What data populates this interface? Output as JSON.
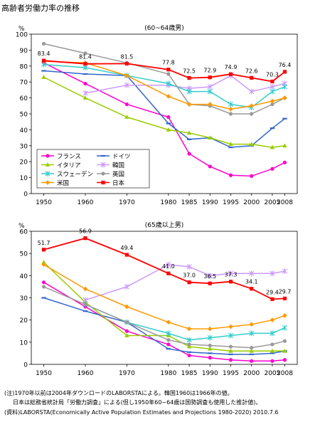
{
  "title": "高齢者労働力率の推移",
  "notes": [
    "(注)1970年以前は2004年ダウンロードのLABORSTAによる。韓国1960は1966年の値。",
    "日本は総務省統計局「労働力調査」による(但し1950年60~64歳は国勢調査も使用した推計値)。",
    "(資料)LABORSTA(Economically Active Population Estimates and Projections 1980-2020) 2010.7.6"
  ],
  "chart_data": [
    {
      "type": "line",
      "title": "(60~64歳男)",
      "ylabel": "%",
      "ylim": [
        0,
        100
      ],
      "yticks": [
        0,
        10,
        20,
        30,
        40,
        50,
        60,
        70,
        80,
        90,
        100
      ],
      "x": [
        1950,
        1960,
        1970,
        1980,
        1985,
        1990,
        1995,
        2000,
        2005,
        2008
      ],
      "legend": "bottom-left",
      "series": [
        {
          "name": "フランス",
          "color": "#ff00cc",
          "marker": "circle",
          "values": [
            82,
            69,
            56,
            48,
            25,
            17,
            11.5,
            11,
            15.5,
            19.5
          ]
        },
        {
          "name": "ドイツ",
          "color": "#3366cc",
          "marker": "dash",
          "values": [
            77,
            75,
            74,
            44,
            34,
            35,
            29,
            30,
            41,
            47
          ]
        },
        {
          "name": "イタリア",
          "color": "#99cc00",
          "marker": "triangle",
          "values": [
            73,
            60,
            48,
            40,
            38,
            35,
            31,
            31,
            29,
            30
          ]
        },
        {
          "name": "韓国",
          "color": "#cc99ff",
          "marker": "star",
          "values": [
            null,
            63,
            68,
            68,
            66,
            67,
            74,
            64,
            67,
            69
          ]
        },
        {
          "name": "スウェーデン",
          "color": "#33cccc",
          "marker": "star",
          "values": [
            81,
            79,
            74,
            69,
            64,
            64,
            56,
            54,
            64,
            67
          ]
        },
        {
          "name": "英国",
          "color": "#999999",
          "marker": "circle",
          "values": [
            94,
            88,
            82,
            75,
            56,
            55,
            50,
            50,
            56,
            60
          ]
        },
        {
          "name": "米国",
          "color": "#ff9900",
          "marker": "diamond",
          "values": [
            83,
            82,
            74,
            61,
            56,
            56,
            53,
            55,
            58,
            60
          ]
        },
        {
          "name": "日本",
          "color": "#ff0000",
          "marker": "square",
          "values": [
            83.4,
            81.4,
            81.5,
            77.8,
            72.5,
            72.9,
            74.9,
            72.6,
            70.3,
            76.4
          ],
          "labels": [
            "83.4",
            "81.4",
            "81.5",
            "77.8",
            "72.5",
            "72.9",
            "74.9",
            "72.6",
            "70.3",
            "76.4"
          ]
        }
      ]
    },
    {
      "type": "line",
      "title": "(65歳以上男)",
      "ylabel": "%",
      "ylim": [
        0,
        60
      ],
      "yticks": [
        0,
        10,
        20,
        30,
        40,
        50,
        60
      ],
      "x": [
        1950,
        1960,
        1970,
        1980,
        1985,
        1990,
        1995,
        2000,
        2005,
        2008
      ],
      "series": [
        {
          "name": "フランス",
          "color": "#ff00cc",
          "marker": "circle",
          "values": [
            37,
            26,
            15,
            9,
            4,
            3,
            2,
            1.5,
            1.5,
            2
          ]
        },
        {
          "name": "ドイツ",
          "color": "#3366cc",
          "marker": "dash",
          "values": [
            30,
            24,
            19,
            7,
            5.5,
            5,
            4.5,
            4.5,
            5,
            6
          ]
        },
        {
          "name": "イタリア",
          "color": "#99cc00",
          "marker": "triangle",
          "values": [
            46,
            28,
            13,
            13,
            8,
            7,
            6,
            6,
            6,
            6
          ]
        },
        {
          "name": "韓国",
          "color": "#cc99ff",
          "marker": "star",
          "values": [
            null,
            29,
            35,
            45,
            44,
            40,
            41,
            41,
            41,
            42
          ]
        },
        {
          "name": "スウェーデン",
          "color": "#33cccc",
          "marker": "star",
          "values": [
            null,
            27,
            19,
            14,
            11,
            12,
            13,
            14,
            14,
            16.5
          ]
        },
        {
          "name": "英国",
          "color": "#999999",
          "marker": "circle",
          "values": [
            35,
            27,
            19,
            11,
            9,
            8.5,
            8,
            7.5,
            9,
            10.5
          ]
        },
        {
          "name": "米国",
          "color": "#ff9900",
          "marker": "diamond",
          "values": [
            45,
            34,
            26,
            19,
            16,
            16,
            17,
            18,
            20,
            22
          ]
        },
        {
          "name": "日本",
          "color": "#ff0000",
          "marker": "square",
          "values": [
            51.7,
            56.9,
            49.4,
            41.0,
            37.0,
            36.5,
            37.3,
            34.1,
            29.4,
            29.7
          ],
          "labels": [
            "51.7",
            "56.9",
            "49.4",
            "41.0",
            "37.0",
            "36.5",
            "37.3",
            "34.1",
            "29.4",
            "29.7"
          ]
        }
      ]
    }
  ]
}
